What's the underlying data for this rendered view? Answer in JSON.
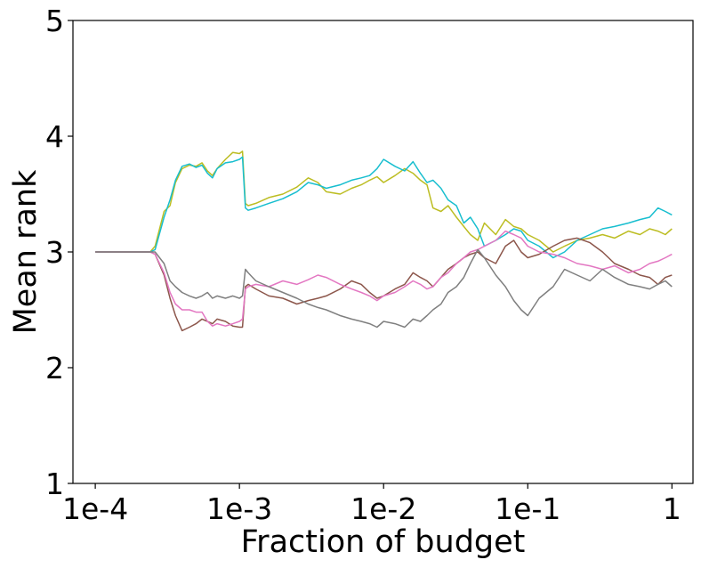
{
  "chart_data": {
    "type": "line",
    "title": "",
    "xlabel": "Fraction of budget",
    "ylabel": "Mean rank",
    "xscale": "log",
    "xlim": [
      7e-05,
      1.4
    ],
    "ylim": [
      1,
      5
    ],
    "xticks": [
      0.0001,
      0.001,
      0.01,
      0.1,
      1
    ],
    "xtick_labels": [
      "1e-4",
      "1e-3",
      "1e-2",
      "1e-1",
      "1"
    ],
    "yticks": [
      1,
      2,
      3,
      4,
      5
    ],
    "ytick_labels": [
      "1",
      "2",
      "3",
      "4",
      "5"
    ],
    "grid": false,
    "legend": "none",
    "series": [
      {
        "color": "#bcbd22",
        "x": [
          0.0001,
          0.00024,
          0.00026,
          0.0003,
          0.00033,
          0.00036,
          0.0004,
          0.00045,
          0.0005,
          0.00055,
          0.0006,
          0.00065,
          0.0007,
          0.0008,
          0.0009,
          0.001,
          0.00105,
          0.0011,
          0.00115,
          0.0013,
          0.0016,
          0.002,
          0.0025,
          0.003,
          0.0035,
          0.004,
          0.005,
          0.006,
          0.007,
          0.008,
          0.009,
          0.01,
          0.012,
          0.014,
          0.016,
          0.018,
          0.02,
          0.022,
          0.025,
          0.028,
          0.032,
          0.036,
          0.04,
          0.045,
          0.05,
          0.06,
          0.07,
          0.08,
          0.09,
          0.1,
          0.12,
          0.15,
          0.18,
          0.22,
          0.27,
          0.33,
          0.4,
          0.5,
          0.6,
          0.7,
          0.8,
          0.9,
          1.0
        ],
        "values": [
          3.0,
          3.0,
          3.05,
          3.35,
          3.4,
          3.6,
          3.72,
          3.75,
          3.74,
          3.77,
          3.7,
          3.66,
          3.72,
          3.8,
          3.86,
          3.85,
          3.87,
          3.42,
          3.4,
          3.42,
          3.47,
          3.5,
          3.56,
          3.64,
          3.6,
          3.52,
          3.5,
          3.55,
          3.58,
          3.62,
          3.65,
          3.6,
          3.66,
          3.72,
          3.68,
          3.62,
          3.58,
          3.38,
          3.35,
          3.4,
          3.3,
          3.22,
          3.15,
          3.1,
          3.25,
          3.15,
          3.28,
          3.22,
          3.2,
          3.15,
          3.1,
          3.0,
          3.05,
          3.1,
          3.12,
          3.15,
          3.12,
          3.18,
          3.15,
          3.2,
          3.18,
          3.15,
          3.2
        ]
      },
      {
        "color": "#17becf",
        "x": [
          0.0001,
          0.00024,
          0.00026,
          0.0003,
          0.00033,
          0.00036,
          0.0004,
          0.00045,
          0.0005,
          0.00055,
          0.0006,
          0.00065,
          0.0007,
          0.0008,
          0.0009,
          0.001,
          0.00105,
          0.0011,
          0.00115,
          0.0013,
          0.0016,
          0.002,
          0.0025,
          0.003,
          0.0035,
          0.004,
          0.005,
          0.006,
          0.007,
          0.008,
          0.009,
          0.01,
          0.012,
          0.014,
          0.016,
          0.018,
          0.02,
          0.022,
          0.025,
          0.028,
          0.032,
          0.036,
          0.04,
          0.045,
          0.05,
          0.06,
          0.07,
          0.08,
          0.09,
          0.1,
          0.12,
          0.15,
          0.18,
          0.22,
          0.27,
          0.33,
          0.4,
          0.5,
          0.6,
          0.7,
          0.8,
          0.9,
          1.0
        ],
        "values": [
          3.0,
          3.0,
          3.02,
          3.3,
          3.45,
          3.62,
          3.74,
          3.76,
          3.73,
          3.75,
          3.68,
          3.64,
          3.72,
          3.77,
          3.78,
          3.8,
          3.82,
          3.38,
          3.36,
          3.38,
          3.42,
          3.46,
          3.52,
          3.6,
          3.58,
          3.55,
          3.58,
          3.62,
          3.64,
          3.66,
          3.72,
          3.8,
          3.74,
          3.7,
          3.78,
          3.68,
          3.6,
          3.62,
          3.55,
          3.45,
          3.4,
          3.25,
          3.3,
          3.2,
          3.05,
          3.1,
          3.15,
          3.2,
          3.18,
          3.1,
          3.05,
          2.95,
          3.0,
          3.1,
          3.15,
          3.2,
          3.22,
          3.25,
          3.28,
          3.3,
          3.38,
          3.35,
          3.32
        ]
      },
      {
        "color": "#8c564b",
        "x": [
          0.0001,
          0.00024,
          0.00026,
          0.0003,
          0.00033,
          0.00036,
          0.0004,
          0.00045,
          0.0005,
          0.00055,
          0.0006,
          0.00065,
          0.0007,
          0.0008,
          0.0009,
          0.001,
          0.00105,
          0.0011,
          0.00115,
          0.0013,
          0.0016,
          0.002,
          0.0025,
          0.003,
          0.0035,
          0.004,
          0.005,
          0.006,
          0.007,
          0.008,
          0.009,
          0.01,
          0.012,
          0.014,
          0.016,
          0.018,
          0.02,
          0.022,
          0.025,
          0.028,
          0.032,
          0.036,
          0.04,
          0.045,
          0.05,
          0.06,
          0.07,
          0.08,
          0.09,
          0.1,
          0.12,
          0.15,
          0.18,
          0.22,
          0.27,
          0.33,
          0.4,
          0.5,
          0.6,
          0.7,
          0.8,
          0.9,
          1.0
        ],
        "values": [
          3.0,
          3.0,
          2.98,
          2.8,
          2.6,
          2.45,
          2.32,
          2.35,
          2.38,
          2.42,
          2.4,
          2.38,
          2.42,
          2.4,
          2.36,
          2.35,
          2.35,
          2.7,
          2.72,
          2.68,
          2.62,
          2.6,
          2.55,
          2.58,
          2.6,
          2.62,
          2.68,
          2.75,
          2.72,
          2.65,
          2.6,
          2.62,
          2.68,
          2.72,
          2.82,
          2.78,
          2.75,
          2.7,
          2.78,
          2.85,
          2.9,
          2.95,
          2.98,
          3.0,
          2.95,
          2.9,
          3.05,
          3.1,
          3.0,
          2.95,
          2.98,
          3.05,
          3.1,
          3.12,
          3.08,
          3.0,
          2.9,
          2.85,
          2.8,
          2.78,
          2.72,
          2.78,
          2.8
        ]
      },
      {
        "color": "#e377c2",
        "x": [
          0.0001,
          0.00024,
          0.00026,
          0.0003,
          0.00033,
          0.00036,
          0.0004,
          0.00045,
          0.0005,
          0.00055,
          0.0006,
          0.00065,
          0.0007,
          0.0008,
          0.0009,
          0.001,
          0.00105,
          0.0011,
          0.00115,
          0.0013,
          0.0016,
          0.002,
          0.0025,
          0.003,
          0.0035,
          0.004,
          0.005,
          0.006,
          0.007,
          0.008,
          0.009,
          0.01,
          0.012,
          0.014,
          0.016,
          0.018,
          0.02,
          0.022,
          0.025,
          0.028,
          0.032,
          0.036,
          0.04,
          0.045,
          0.05,
          0.06,
          0.07,
          0.08,
          0.09,
          0.1,
          0.12,
          0.15,
          0.18,
          0.22,
          0.27,
          0.33,
          0.4,
          0.5,
          0.6,
          0.7,
          0.8,
          0.9,
          1.0
        ],
        "values": [
          3.0,
          3.0,
          2.98,
          2.82,
          2.65,
          2.55,
          2.5,
          2.5,
          2.48,
          2.48,
          2.4,
          2.36,
          2.38,
          2.36,
          2.38,
          2.4,
          2.42,
          2.68,
          2.7,
          2.72,
          2.7,
          2.75,
          2.72,
          2.76,
          2.8,
          2.78,
          2.72,
          2.68,
          2.65,
          2.62,
          2.58,
          2.62,
          2.65,
          2.7,
          2.75,
          2.72,
          2.68,
          2.7,
          2.78,
          2.82,
          2.9,
          2.95,
          3.0,
          3.02,
          3.05,
          3.1,
          3.18,
          3.15,
          3.12,
          3.05,
          3.0,
          2.98,
          2.95,
          2.9,
          2.88,
          2.85,
          2.88,
          2.82,
          2.85,
          2.9,
          2.92,
          2.95,
          2.98
        ]
      },
      {
        "color": "#7f7f7f",
        "x": [
          0.0001,
          0.00024,
          0.00026,
          0.0003,
          0.00033,
          0.00036,
          0.0004,
          0.00045,
          0.0005,
          0.00055,
          0.0006,
          0.00065,
          0.0007,
          0.0008,
          0.0009,
          0.001,
          0.00105,
          0.0011,
          0.00115,
          0.0013,
          0.0016,
          0.002,
          0.0025,
          0.003,
          0.0035,
          0.004,
          0.005,
          0.006,
          0.007,
          0.008,
          0.009,
          0.01,
          0.012,
          0.014,
          0.016,
          0.018,
          0.02,
          0.022,
          0.025,
          0.028,
          0.032,
          0.036,
          0.04,
          0.045,
          0.05,
          0.06,
          0.07,
          0.08,
          0.09,
          0.1,
          0.12,
          0.15,
          0.18,
          0.22,
          0.27,
          0.33,
          0.4,
          0.5,
          0.6,
          0.7,
          0.8,
          0.9,
          1.0
        ],
        "values": [
          3.0,
          3.0,
          3.0,
          2.9,
          2.75,
          2.7,
          2.65,
          2.62,
          2.6,
          2.62,
          2.65,
          2.6,
          2.62,
          2.6,
          2.62,
          2.6,
          2.62,
          2.85,
          2.82,
          2.75,
          2.7,
          2.65,
          2.6,
          2.55,
          2.52,
          2.5,
          2.45,
          2.42,
          2.4,
          2.38,
          2.35,
          2.4,
          2.38,
          2.35,
          2.42,
          2.4,
          2.45,
          2.5,
          2.55,
          2.65,
          2.7,
          2.78,
          2.9,
          3.02,
          2.95,
          2.8,
          2.7,
          2.58,
          2.5,
          2.45,
          2.6,
          2.7,
          2.85,
          2.8,
          2.75,
          2.85,
          2.78,
          2.72,
          2.7,
          2.68,
          2.72,
          2.75,
          2.7
        ]
      }
    ]
  }
}
